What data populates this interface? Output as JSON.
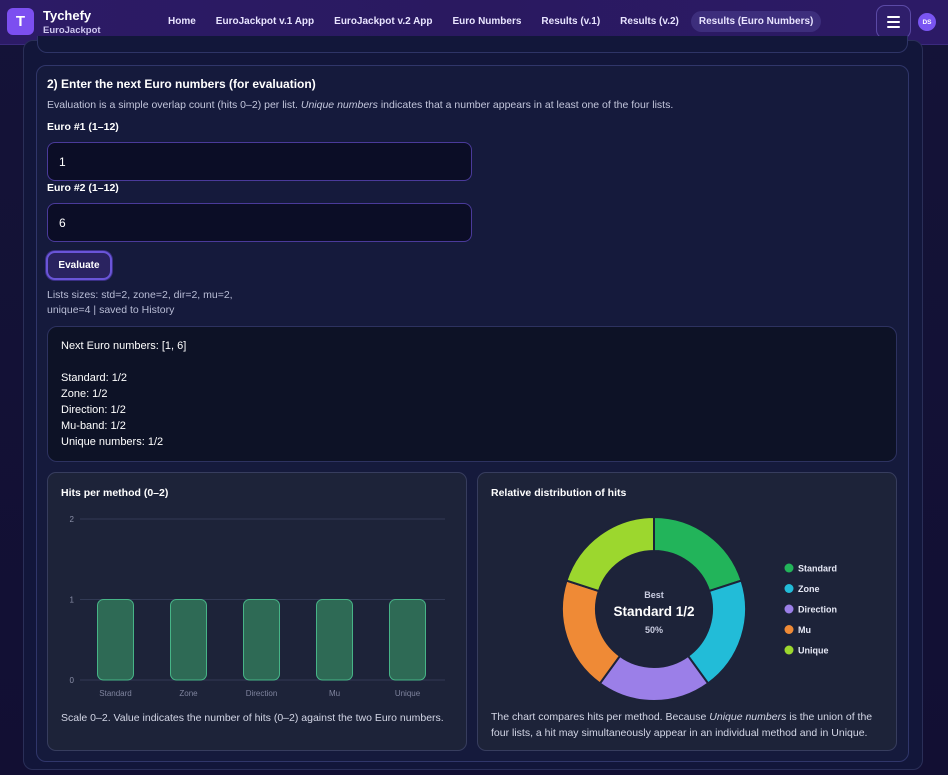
{
  "navbar": {
    "logo_letter": "T",
    "brand_name": "Tychefy",
    "brand_sub": "EuroJackpot",
    "links": [
      {
        "label": "Home",
        "active": false
      },
      {
        "label": "EuroJackpot v.1 App",
        "active": false
      },
      {
        "label": "EuroJackpot v.2 App",
        "active": false
      },
      {
        "label": "Euro Numbers",
        "active": false
      },
      {
        "label": "Results (v.1)",
        "active": false
      },
      {
        "label": "Results (v.2)",
        "active": false
      },
      {
        "label": "Results (Euro Numbers)",
        "active": true
      }
    ],
    "menu_icon": "hamburger-icon",
    "avatar_initials": "DS"
  },
  "section": {
    "title": "2) Enter the next Euro numbers (for evaluation)",
    "desc_before": "Evaluation is a simple overlap count (hits 0–2) per list. ",
    "desc_em": "Unique numbers",
    "desc_after": " indicates that a number appears in at least one of the four lists.",
    "euro1_label": "Euro #1 (1–12)",
    "euro1_value": "1",
    "euro2_label": "Euro #2 (1–12)",
    "euro2_value": "6",
    "evaluate_label": "Evaluate",
    "status_line1": "Lists sizes: std=2, zone=2, dir=2, mu=2,",
    "status_line2": "unique=4 | saved to History"
  },
  "result": {
    "lines": [
      "Next Euro numbers: [1, 6]",
      "",
      "Standard: 1/2",
      "Zone: 1/2",
      "Direction: 1/2",
      "Mu-band: 1/2",
      "Unique numbers: 1/2"
    ]
  },
  "bar_card": {
    "title": "Hits per method (0–2)",
    "caption": "Scale 0–2. Value indicates the number of hits (0–2) against the two Euro numbers."
  },
  "donut_card": {
    "title": "Relative distribution of hits",
    "center_top": "Best",
    "center_main": "Standard 1/2",
    "center_sub": "50%",
    "caption_before": "The chart compares hits per method. Because ",
    "caption_em": "Unique numbers",
    "caption_after1": " is the union of the",
    "caption_line2": "four lists, a hit may simultaneously appear in an individual method and in Unique."
  },
  "chart_data": [
    {
      "type": "bar",
      "title": "Hits per method (0–2)",
      "categories": [
        "Standard",
        "Zone",
        "Direction",
        "Mu",
        "Unique"
      ],
      "values": [
        1,
        1,
        1,
        1,
        1
      ],
      "ylim": [
        0,
        2
      ],
      "yticks": [
        "0",
        "1",
        "2"
      ],
      "grid": true,
      "bar_color": "#2e6a55",
      "bar_border": "#47b487"
    },
    {
      "type": "pie",
      "title": "Relative distribution of hits",
      "categories": [
        "Standard",
        "Zone",
        "Direction",
        "Mu",
        "Unique"
      ],
      "values": [
        1,
        1,
        1,
        1,
        1
      ],
      "colors": [
        "#22b45a",
        "#22bcd8",
        "#9b7fe8",
        "#ef8a36",
        "#9cd72e"
      ],
      "legend": "right"
    }
  ]
}
